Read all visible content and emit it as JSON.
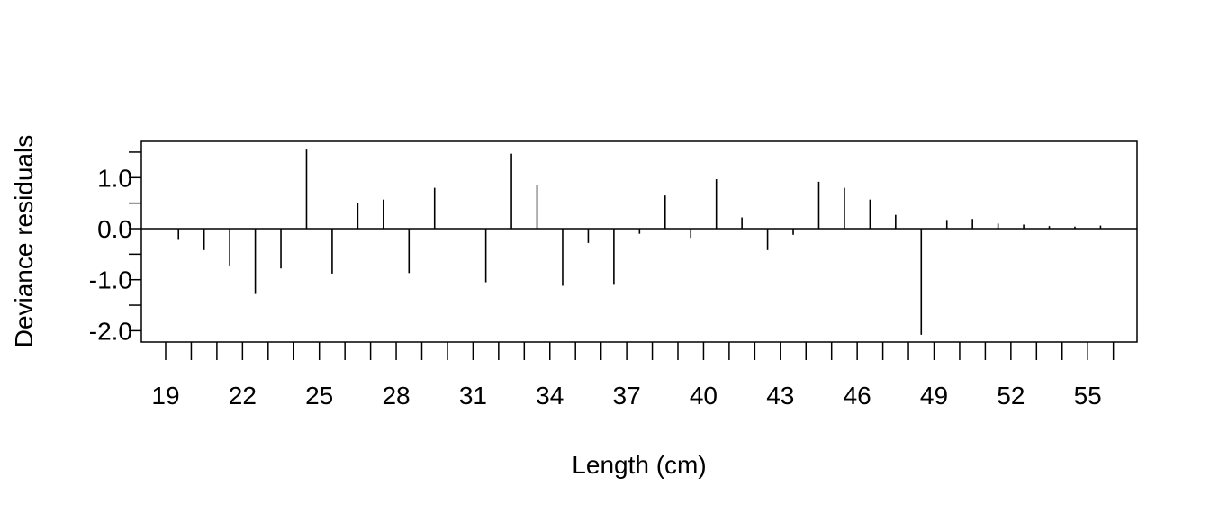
{
  "chart_data": {
    "type": "bar",
    "style": "vertical line segments (spikes) from zero",
    "xlabel": "Length (cm)",
    "ylabel": "Deviance residuals",
    "x_tick_labels": [
      "19",
      "22",
      "25",
      "28",
      "31",
      "34",
      "37",
      "40",
      "43",
      "46",
      "49",
      "52",
      "55"
    ],
    "y_tick_labels": [
      "1.0",
      "0.0",
      "-1.0",
      "-2.0"
    ],
    "y_label_values": [
      1.0,
      0.0,
      -1.0,
      -2.0
    ],
    "y_minor_values": [
      1.5,
      0.5,
      -0.5,
      -1.5
    ],
    "xlim": [
      18.5,
      57
    ],
    "ylim": [
      -2.22,
      1.7
    ],
    "zero_line": true,
    "grid": false,
    "legend": "none",
    "x": [
      19.5,
      20.5,
      21.5,
      22.5,
      23.5,
      24.5,
      25.5,
      26.5,
      27.5,
      28.5,
      29.5,
      31.5,
      32.5,
      33.5,
      34.5,
      35.5,
      36.5,
      37.5,
      38.5,
      39.5,
      40.5,
      41.5,
      42.5,
      43.5,
      44.5,
      45.5,
      46.5,
      47.5,
      48.5,
      49.5,
      50.5,
      51.5,
      52.5,
      53.5,
      54.5,
      55.5
    ],
    "values": [
      -0.22,
      -0.42,
      -0.72,
      -1.28,
      -0.78,
      1.55,
      -0.88,
      0.5,
      0.57,
      -0.87,
      0.8,
      -1.05,
      1.47,
      0.85,
      -1.12,
      -0.28,
      -1.1,
      -0.1,
      0.65,
      -0.18,
      0.97,
      0.22,
      -0.42,
      -0.12,
      0.92,
      0.8,
      0.57,
      0.27,
      -2.08,
      0.17,
      0.19,
      0.1,
      0.08,
      0.05,
      0.04,
      0.06
    ],
    "line_color": "#000000"
  }
}
